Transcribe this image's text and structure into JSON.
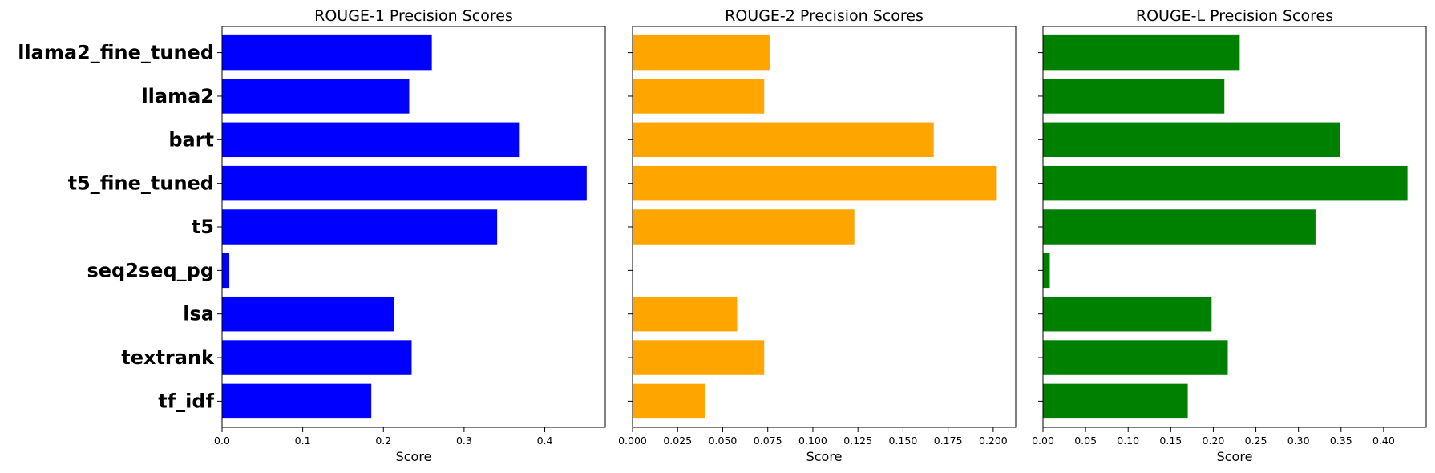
{
  "chart_data": [
    {
      "type": "bar",
      "orientation": "horizontal",
      "title": "ROUGE-1 Precision Scores",
      "xlabel": "Score",
      "categories": [
        "llama2_fine_tuned",
        "llama2",
        "bart",
        "t5_fine_tuned",
        "t5",
        "seq2seq_pg",
        "lsa",
        "textrank",
        "tf_idf"
      ],
      "values": [
        0.26,
        0.232,
        0.369,
        0.452,
        0.341,
        0.009,
        0.213,
        0.235,
        0.185
      ],
      "xlim": [
        0,
        0.475
      ],
      "xticks": [
        "0.0",
        "0.1",
        "0.2",
        "0.3",
        "0.4"
      ],
      "color": "#0000ff"
    },
    {
      "type": "bar",
      "orientation": "horizontal",
      "title": "ROUGE-2 Precision Scores",
      "xlabel": "Score",
      "categories": [
        "llama2_fine_tuned",
        "llama2",
        "bart",
        "t5_fine_tuned",
        "t5",
        "seq2seq_pg",
        "lsa",
        "textrank",
        "tf_idf"
      ],
      "values": [
        0.076,
        0.073,
        0.167,
        0.202,
        0.123,
        0.0,
        0.058,
        0.073,
        0.04
      ],
      "xlim": [
        0,
        0.2125
      ],
      "xticks": [
        "0.000",
        "0.025",
        "0.050",
        "0.075",
        "0.100",
        "0.125",
        "0.150",
        "0.175",
        "0.200"
      ],
      "color": "#ffa500"
    },
    {
      "type": "bar",
      "orientation": "horizontal",
      "title": "ROUGE-L Precision Scores",
      "xlabel": "Score",
      "categories": [
        "llama2_fine_tuned",
        "llama2",
        "bart",
        "t5_fine_tuned",
        "t5",
        "seq2seq_pg",
        "lsa",
        "textrank",
        "tf_idf"
      ],
      "values": [
        0.231,
        0.213,
        0.349,
        0.428,
        0.32,
        0.008,
        0.198,
        0.217,
        0.17
      ],
      "xlim": [
        0,
        0.45
      ],
      "xticks": [
        "0.00",
        "0.05",
        "0.10",
        "0.15",
        "0.20",
        "0.25",
        "0.30",
        "0.35",
        "0.40"
      ],
      "color": "#008000"
    }
  ]
}
